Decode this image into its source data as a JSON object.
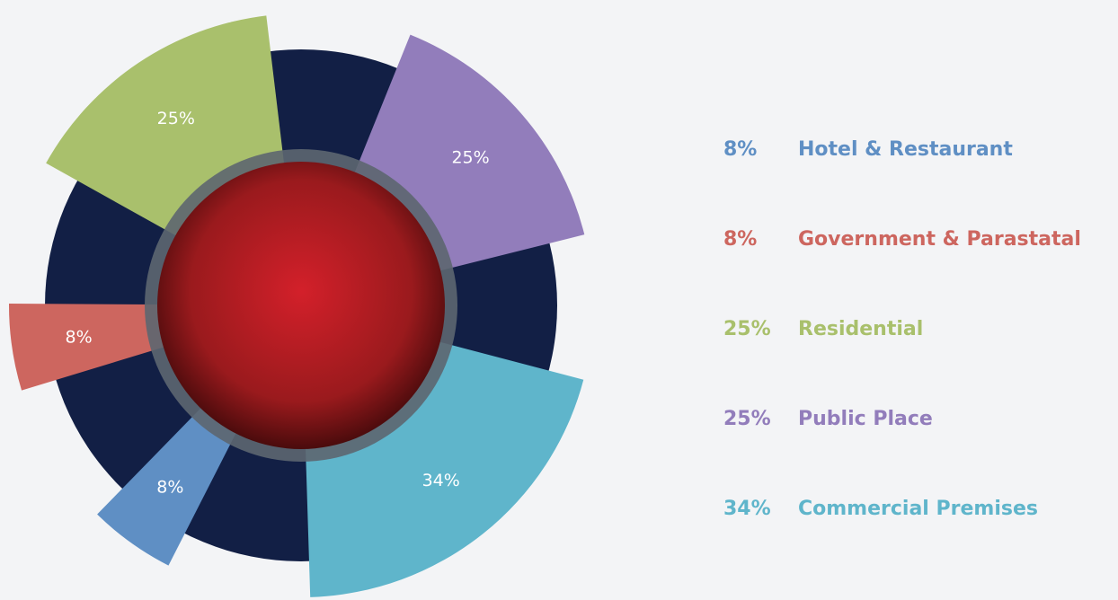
{
  "chart_data": {
    "type": "pie",
    "categories": [
      "Hotel & Restaurant",
      "Government & Parastatal",
      "Residential",
      "Public Place",
      "Commercial Premises"
    ],
    "values": [
      8,
      8,
      25,
      25,
      34
    ],
    "value_labels": [
      "8%",
      "8%",
      "25%",
      "25%",
      "34%"
    ],
    "colors": [
      "#5f8fc4",
      "#cd665f",
      "#a9c06c",
      "#927dbb",
      "#5fb5cb"
    ],
    "legend": "right"
  }
}
